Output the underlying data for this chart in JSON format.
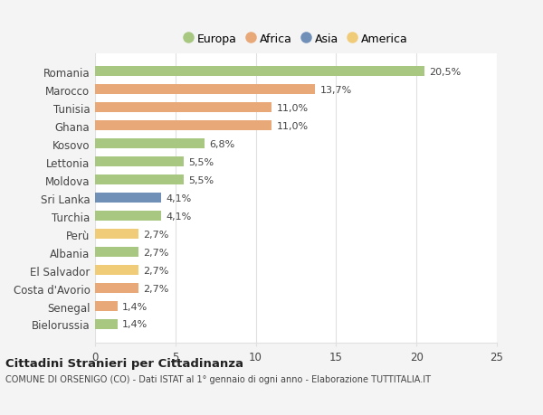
{
  "countries": [
    "Romania",
    "Marocco",
    "Tunisia",
    "Ghana",
    "Kosovo",
    "Lettonia",
    "Moldova",
    "Sri Lanka",
    "Turchia",
    "Perù",
    "Albania",
    "El Salvador",
    "Costa d'Avorio",
    "Senegal",
    "Bielorussia"
  ],
  "values": [
    20.5,
    13.7,
    11.0,
    11.0,
    6.8,
    5.5,
    5.5,
    4.1,
    4.1,
    2.7,
    2.7,
    2.7,
    2.7,
    1.4,
    1.4
  ],
  "labels": [
    "20,5%",
    "13,7%",
    "11,0%",
    "11,0%",
    "6,8%",
    "5,5%",
    "5,5%",
    "4,1%",
    "4,1%",
    "2,7%",
    "2,7%",
    "2,7%",
    "2,7%",
    "1,4%",
    "1,4%"
  ],
  "colors": [
    "#a8c882",
    "#e8a878",
    "#e8a878",
    "#e8a878",
    "#a8c882",
    "#a8c882",
    "#a8c882",
    "#7090b8",
    "#a8c882",
    "#f0cc78",
    "#a8c882",
    "#f0cc78",
    "#e8a878",
    "#e8a878",
    "#a8c882"
  ],
  "legend_labels": [
    "Europa",
    "Africa",
    "Asia",
    "America"
  ],
  "legend_colors": [
    "#a8c882",
    "#e8a878",
    "#7090b8",
    "#f0cc78"
  ],
  "title": "Cittadini Stranieri per Cittadinanza",
  "subtitle": "COMUNE DI ORSENIGO (CO) - Dati ISTAT al 1° gennaio di ogni anno - Elaborazione TUTTITALIA.IT",
  "xlim": [
    0,
    25
  ],
  "xticks": [
    0,
    5,
    10,
    15,
    20,
    25
  ],
  "background_color": "#f4f4f4",
  "bar_background": "#ffffff",
  "grid_color": "#e0e0e0",
  "text_color": "#444444"
}
